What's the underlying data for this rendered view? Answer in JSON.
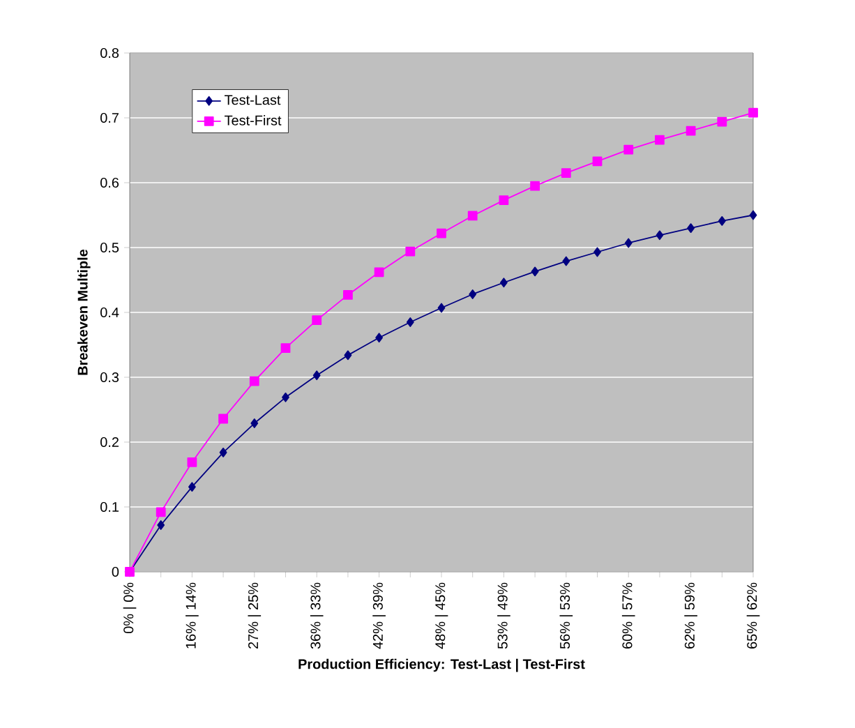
{
  "chart_data": {
    "type": "line",
    "xlabel": "Production Efficiency: Test-Last | Test-First",
    "ylabel": "Breakeven Multiple",
    "categories": [
      "0% | 0%",
      null,
      "16% | 14%",
      null,
      "27% | 25%",
      null,
      "36% | 33%",
      null,
      "42% | 39%",
      null,
      "48% | 45%",
      null,
      "53% | 49%",
      null,
      "56% | 53%",
      null,
      "60% | 57%",
      null,
      "62% | 59%",
      null,
      "65% | 62%"
    ],
    "series": [
      {
        "name": "Test-Last",
        "color": "#000080",
        "marker": "diamond",
        "values": [
          0,
          0.072,
          0.131,
          0.184,
          0.229,
          0.269,
          0.303,
          0.334,
          0.361,
          0.385,
          0.407,
          0.428,
          0.446,
          0.463,
          0.479,
          0.493,
          0.507,
          0.519,
          0.53,
          0.541,
          0.55
        ]
      },
      {
        "name": "Test-First",
        "color": "#ff00ff",
        "marker": "square",
        "values": [
          0,
          0.092,
          0.169,
          0.236,
          0.294,
          0.345,
          0.388,
          0.427,
          0.462,
          0.494,
          0.522,
          0.549,
          0.573,
          0.595,
          0.615,
          0.633,
          0.651,
          0.666,
          0.68,
          0.694,
          0.708
        ]
      }
    ],
    "ylim": [
      0,
      0.8
    ],
    "yticks": [
      0,
      0.1,
      0.2,
      0.3,
      0.4,
      0.5,
      0.6,
      0.7,
      0.8
    ],
    "grid": "y",
    "legend": "top left"
  }
}
